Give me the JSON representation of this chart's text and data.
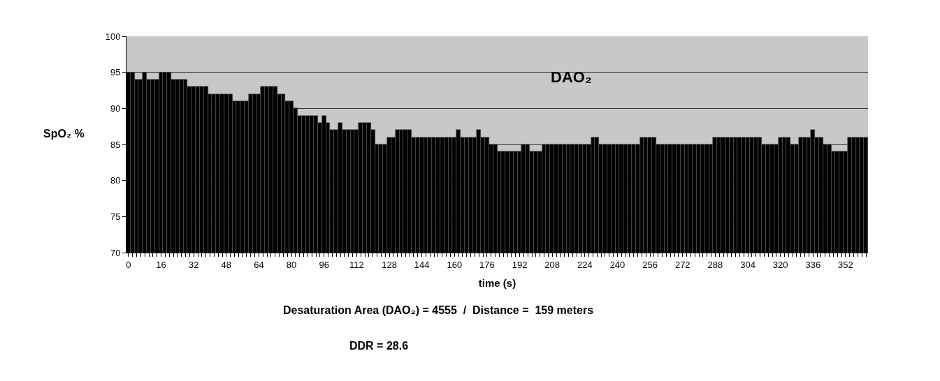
{
  "chart_data": {
    "type": "bar",
    "ylabel": "SpO₂ %",
    "xlabel": "time (s)",
    "categories": [
      "0",
      null,
      null,
      null,
      null,
      null,
      null,
      null,
      "16",
      null,
      null,
      null,
      null,
      null,
      null,
      null,
      "32",
      null,
      null,
      null,
      null,
      null,
      null,
      null,
      "48",
      null,
      null,
      null,
      null,
      null,
      null,
      null,
      "64",
      null,
      null,
      null,
      null,
      null,
      null,
      null,
      "80",
      null,
      null,
      null,
      null,
      null,
      null,
      null,
      "96",
      null,
      null,
      null,
      null,
      null,
      null,
      null,
      "112",
      null,
      null,
      null,
      null,
      null,
      null,
      null,
      "128",
      null,
      null,
      null,
      null,
      null,
      null,
      null,
      "144",
      null,
      null,
      null,
      null,
      null,
      null,
      null,
      "160",
      null,
      null,
      null,
      null,
      null,
      null,
      null,
      "176",
      null,
      null,
      null,
      null,
      null,
      null,
      null,
      "192",
      null,
      null,
      null,
      null,
      null,
      null,
      null,
      "208",
      null,
      null,
      null,
      null,
      null,
      null,
      null,
      "224",
      null,
      null,
      null,
      null,
      null,
      null,
      null,
      "240",
      null,
      null,
      null,
      null,
      null,
      null,
      null,
      "256",
      null,
      null,
      null,
      null,
      null,
      null,
      null,
      "272",
      null,
      null,
      null,
      null,
      null,
      null,
      null,
      "288",
      null,
      null,
      null,
      null,
      null,
      null,
      null,
      "304",
      null,
      null,
      null,
      null,
      null,
      null,
      null,
      "320",
      null,
      null,
      null,
      null,
      null,
      null,
      null,
      "336",
      null,
      null,
      null,
      null,
      null,
      null,
      null,
      "352",
      null,
      null,
      null,
      null,
      null
    ],
    "values": [
      95,
      95,
      94,
      94,
      95,
      94,
      94,
      94,
      95,
      95,
      95,
      94,
      94,
      94,
      94,
      93,
      93,
      93,
      93,
      93,
      92,
      92,
      92,
      92,
      92,
      92,
      91,
      91,
      91,
      91,
      92,
      92,
      92,
      93,
      93,
      93,
      93,
      92,
      92,
      91,
      91,
      90,
      89,
      89,
      89,
      89,
      89,
      88,
      89,
      88,
      87,
      87,
      88,
      87,
      87,
      87,
      87,
      88,
      88,
      88,
      87,
      85,
      85,
      85,
      86,
      86,
      87,
      87,
      87,
      87,
      86,
      86,
      86,
      86,
      86,
      86,
      86,
      86,
      86,
      86,
      86,
      87,
      86,
      86,
      86,
      86,
      87,
      86,
      86,
      85,
      85,
      84,
      84,
      84,
      84,
      84,
      84,
      85,
      85,
      84,
      84,
      84,
      85,
      85,
      85,
      85,
      85,
      85,
      85,
      85,
      85,
      85,
      85,
      85,
      86,
      86,
      85,
      85,
      85,
      85,
      85,
      85,
      85,
      85,
      85,
      85,
      86,
      86,
      86,
      86,
      85,
      85,
      85,
      85,
      85,
      85,
      85,
      85,
      85,
      85,
      85,
      85,
      85,
      85,
      86,
      86,
      86,
      86,
      86,
      86,
      86,
      86,
      86,
      86,
      86,
      86,
      85,
      85,
      85,
      85,
      86,
      86,
      86,
      85,
      85,
      86,
      86,
      86,
      87,
      86,
      86,
      85,
      85,
      84,
      84,
      84,
      84,
      86,
      86,
      86,
      86,
      86
    ],
    "color": "#000000",
    "ylim": [
      70,
      100
    ],
    "yticks": [
      70,
      75,
      80,
      85,
      90,
      95,
      100
    ],
    "grid": "y",
    "legend": false,
    "annotations": [
      "DAO₂",
      "Desaturation Area (DAO₂) = 4555  /  Distance =  159 meters",
      "DDR = 28.6"
    ]
  }
}
